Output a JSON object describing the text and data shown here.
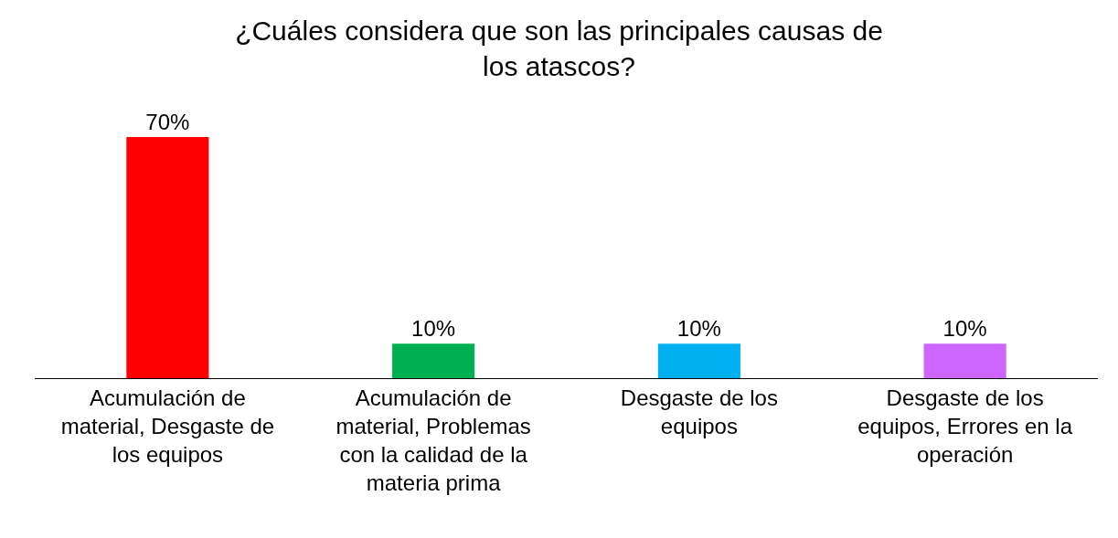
{
  "chart_data": {
    "type": "bar",
    "title": "¿Cuáles considera que son las principales causas de los atascos?",
    "categories": [
      "Acumulación de material, Desgaste de los equipos",
      "Acumulación de material, Problemas con la calidad de la materia prima",
      "Desgaste de los equipos",
      "Desgaste de los equipos, Errores en la operación"
    ],
    "values": [
      70,
      10,
      10,
      10
    ],
    "value_labels": [
      "70%",
      "10%",
      "10%",
      "10%"
    ],
    "colors": [
      "#ff0000",
      "#00b050",
      "#00b0f0",
      "#cc66ff"
    ]
  }
}
